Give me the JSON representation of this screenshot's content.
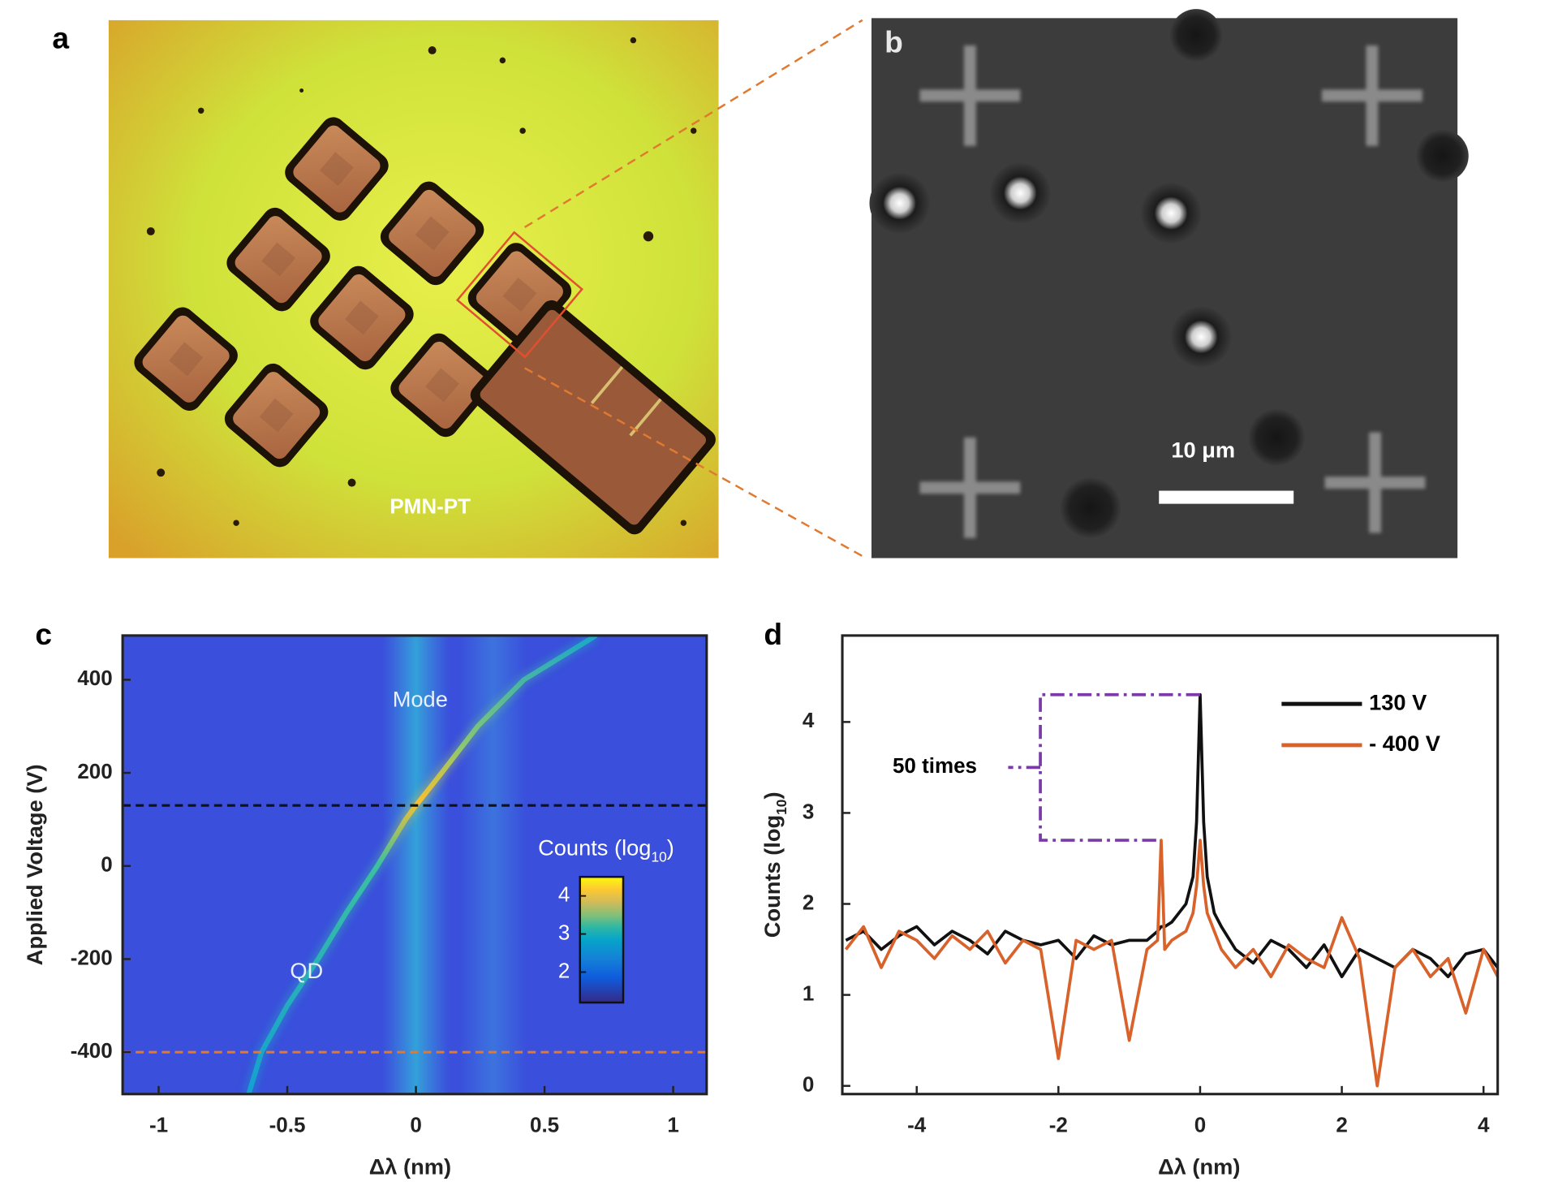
{
  "panels": [
    {
      "label": "a",
      "annotation": "PMN-PT"
    },
    {
      "label": "b",
      "scale_bar_label": "10 μm"
    }
  ],
  "chart_data": [
    {
      "type": "map",
      "label": "c",
      "xlabel": "Δλ (nm)",
      "ylabel": "Applied Voltage (V)",
      "xlim": [
        -1.14,
        1.13
      ],
      "ylim": [
        -490,
        495
      ],
      "xticks": [
        -1,
        -0.5,
        0,
        0.5,
        1
      ],
      "yticks": [
        -400,
        -200,
        0,
        200,
        400
      ],
      "annotations": [
        "Mode",
        "QD"
      ],
      "mode_x": [
        0,
        0.3
      ],
      "trace": {
        "x": [
          -0.65,
          -0.6,
          -0.5,
          -0.38,
          -0.27,
          -0.15,
          -0.04,
          0,
          0.1,
          0.24,
          0.42,
          0.7
        ],
        "values": [
          -490,
          -400,
          -300,
          -200,
          -100,
          0,
          100,
          130,
          200,
          300,
          400,
          495
        ]
      },
      "hlines": [
        {
          "value": 130,
          "color": "#111111"
        },
        {
          "value": -400,
          "color": "#e07a30"
        }
      ],
      "colorbar": {
        "label": [
          "Counts (log",
          "10",
          ")"
        ],
        "lim": [
          1.2,
          4.5
        ],
        "ticks": [
          2,
          3,
          4
        ]
      }
    },
    {
      "type": "line",
      "label": "d",
      "xlabel": "Δλ (nm)",
      "ylabel": [
        "Counts (log",
        "10",
        ")"
      ],
      "xlim": [
        -5.05,
        4.2
      ],
      "ylim": [
        -0.09,
        4.95
      ],
      "xticks": [
        -4,
        -2,
        0,
        2,
        4
      ],
      "yticks": [
        0,
        1,
        2,
        3,
        4
      ],
      "x": [
        -5,
        -4.75,
        -4.5,
        -4.25,
        -4,
        -3.75,
        -3.5,
        -3.25,
        -3,
        -2.75,
        -2.5,
        -2.25,
        -2,
        -1.75,
        -1.5,
        -1.25,
        -1,
        -0.75,
        -0.6,
        -0.55,
        -0.5,
        -0.4,
        -0.3,
        -0.2,
        -0.1,
        -0.05,
        0,
        0.05,
        0.1,
        0.2,
        0.3,
        0.5,
        0.75,
        1,
        1.25,
        1.5,
        1.75,
        2,
        2.25,
        2.5,
        2.75,
        3,
        3.25,
        3.5,
        3.75,
        4,
        4.2
      ],
      "series": [
        {
          "name": "130 V",
          "color": "#111111",
          "values": [
            1.6,
            1.7,
            1.5,
            1.65,
            1.75,
            1.55,
            1.7,
            1.6,
            1.45,
            1.7,
            1.6,
            1.55,
            1.6,
            1.4,
            1.65,
            1.55,
            1.6,
            1.6,
            1.7,
            1.75,
            1.75,
            1.8,
            1.9,
            2.0,
            2.3,
            2.9,
            4.3,
            2.9,
            2.3,
            1.9,
            1.75,
            1.5,
            1.35,
            1.6,
            1.5,
            1.3,
            1.55,
            1.2,
            1.5,
            1.4,
            1.3,
            1.5,
            1.4,
            1.2,
            1.45,
            1.5,
            1.3
          ]
        },
        {
          "name": "- 400 V",
          "color": "#d9622b",
          "values": [
            1.5,
            1.75,
            1.3,
            1.7,
            1.6,
            1.4,
            1.65,
            1.5,
            1.7,
            1.35,
            1.6,
            1.5,
            0.3,
            1.6,
            1.5,
            1.6,
            0.5,
            1.5,
            1.6,
            2.7,
            1.5,
            1.6,
            1.65,
            1.7,
            1.9,
            2.2,
            2.7,
            2.2,
            1.9,
            1.7,
            1.5,
            1.3,
            1.5,
            1.2,
            1.55,
            1.4,
            1.3,
            1.85,
            1.4,
            0,
            1.3,
            1.5,
            1.2,
            1.4,
            0.8,
            1.5,
            1.2
          ]
        }
      ],
      "annotation": "50 times"
    }
  ]
}
